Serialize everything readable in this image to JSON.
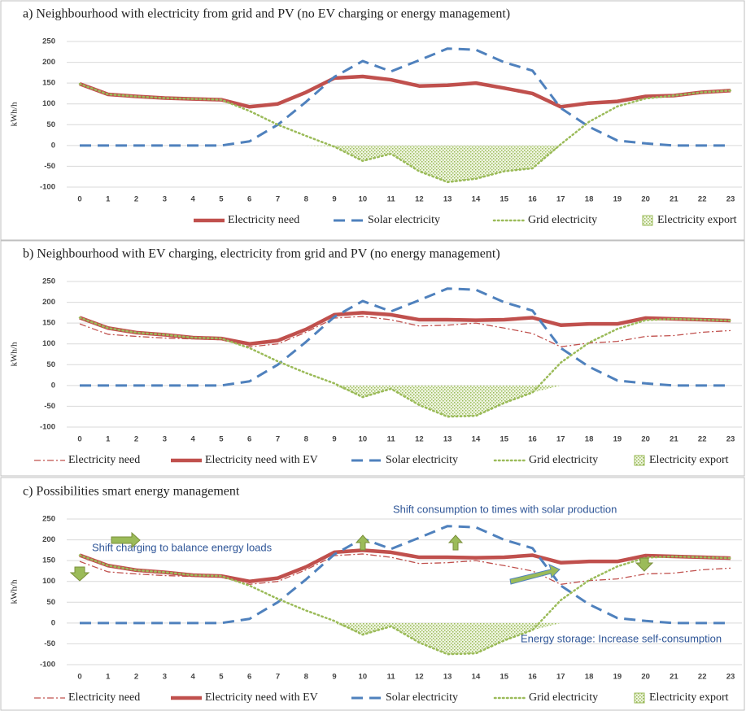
{
  "chart_data": [
    {
      "type": "line",
      "title": "a) Neighbourhood with electricity  from grid and PV (no EV charging or energy management)",
      "y_label": "kWh/h",
      "categories": [
        "0",
        "1",
        "2",
        "3",
        "4",
        "5",
        "6",
        "7",
        "8",
        "9",
        "10",
        "11",
        "12",
        "13",
        "14",
        "15",
        "16",
        "17",
        "18",
        "19",
        "20",
        "21",
        "22",
        "23"
      ],
      "ylim": [
        -100,
        250
      ],
      "yticks": [
        -100,
        -50,
        0,
        50,
        100,
        150,
        200,
        250
      ],
      "grid": true,
      "series": [
        {
          "name": "Electricity need",
          "color": "#c0504d",
          "style": "thick",
          "values": [
            148,
            123,
            118,
            114,
            112,
            110,
            93,
            100,
            128,
            162,
            166,
            158,
            143,
            145,
            150,
            138,
            125,
            93,
            102,
            106,
            118,
            120,
            128,
            132
          ]
        },
        {
          "name": "Solar electricity",
          "color": "#4f81bd",
          "style": "dash",
          "values": [
            0,
            0,
            0,
            0,
            0,
            0,
            10,
            50,
            105,
            165,
            203,
            178,
            205,
            233,
            230,
            200,
            180,
            90,
            45,
            12,
            5,
            0,
            0,
            0
          ]
        },
        {
          "name": "Grid electricity",
          "color": "#9bbb59",
          "style": "dot",
          "values": [
            148,
            123,
            118,
            114,
            112,
            110,
            83,
            50,
            23,
            -3,
            -37,
            -20,
            -62,
            -88,
            -80,
            -62,
            -55,
            3,
            57,
            94,
            113,
            120,
            128,
            132
          ]
        },
        {
          "name": "Electricity  export",
          "color": "#9bbb59",
          "style": "hatch",
          "values": [
            0,
            0,
            0,
            0,
            0,
            0,
            0,
            0,
            0,
            -3,
            -37,
            -20,
            -62,
            -88,
            -80,
            -62,
            -55,
            0,
            0,
            0,
            0,
            0,
            0,
            0
          ]
        }
      ]
    },
    {
      "type": "line",
      "title": "b) Neighbourhood with EV charging, electricity  from grid and PV (no energy management)",
      "y_label": "kWh/h",
      "categories": [
        "0",
        "1",
        "2",
        "3",
        "4",
        "5",
        "6",
        "7",
        "8",
        "9",
        "10",
        "11",
        "12",
        "13",
        "14",
        "15",
        "16",
        "17",
        "18",
        "19",
        "20",
        "21",
        "22",
        "23"
      ],
      "ylim": [
        -100,
        250
      ],
      "yticks": [
        -100,
        -50,
        0,
        50,
        100,
        150,
        200,
        250
      ],
      "grid": true,
      "series": [
        {
          "name": "Electricity need",
          "color": "#c0504d",
          "style": "dashdot",
          "values": [
            148,
            123,
            118,
            114,
            112,
            110,
            93,
            100,
            128,
            162,
            166,
            158,
            143,
            145,
            150,
            138,
            125,
            93,
            102,
            106,
            118,
            120,
            128,
            132
          ]
        },
        {
          "name": "Electricity need with EV",
          "color": "#c0504d",
          "style": "thick",
          "values": [
            163,
            138,
            127,
            122,
            115,
            113,
            100,
            108,
            135,
            170,
            175,
            170,
            158,
            158,
            157,
            158,
            163,
            145,
            148,
            148,
            162,
            160,
            158,
            156
          ]
        },
        {
          "name": "Solar electricity",
          "color": "#4f81bd",
          "style": "dash",
          "values": [
            0,
            0,
            0,
            0,
            0,
            0,
            10,
            50,
            105,
            165,
            203,
            178,
            205,
            233,
            230,
            200,
            180,
            90,
            45,
            12,
            5,
            0,
            0,
            0
          ]
        },
        {
          "name": "Grid electricity",
          "color": "#9bbb59",
          "style": "dot",
          "values": [
            163,
            138,
            127,
            122,
            115,
            113,
            90,
            58,
            30,
            5,
            -28,
            -8,
            -47,
            -75,
            -73,
            -42,
            -17,
            55,
            103,
            136,
            157,
            160,
            158,
            156
          ]
        },
        {
          "name": "Electricity  export",
          "color": "#9bbb59",
          "style": "hatch",
          "values": [
            0,
            0,
            0,
            0,
            0,
            0,
            0,
            0,
            0,
            0,
            -28,
            -8,
            -47,
            -75,
            -73,
            -42,
            -17,
            0,
            0,
            0,
            0,
            0,
            0,
            0
          ]
        }
      ]
    },
    {
      "type": "line",
      "title": "c) Possibilities smart energy management",
      "y_label": "kWh/h",
      "annotations": [
        "Shift charging to balance energy loads",
        "Shift consumption to times with solar production",
        "Energy storage: Increase self-consumption"
      ],
      "categories": [
        "0",
        "1",
        "2",
        "3",
        "4",
        "5",
        "6",
        "7",
        "8",
        "9",
        "10",
        "11",
        "12",
        "13",
        "14",
        "15",
        "16",
        "17",
        "18",
        "19",
        "20",
        "21",
        "22",
        "23"
      ],
      "ylim": [
        -100,
        250
      ],
      "yticks": [
        -100,
        -50,
        0,
        50,
        100,
        150,
        200,
        250
      ],
      "grid": true,
      "series": [
        {
          "name": "Electricity need",
          "color": "#c0504d",
          "style": "dashdot",
          "values": [
            148,
            123,
            118,
            114,
            112,
            110,
            93,
            100,
            128,
            162,
            166,
            158,
            143,
            145,
            150,
            138,
            125,
            93,
            102,
            106,
            118,
            120,
            128,
            132
          ]
        },
        {
          "name": "Electricity need with EV",
          "color": "#c0504d",
          "style": "thick",
          "values": [
            163,
            138,
            127,
            122,
            115,
            113,
            100,
            108,
            135,
            170,
            175,
            170,
            158,
            158,
            157,
            158,
            163,
            145,
            148,
            148,
            162,
            160,
            158,
            156
          ]
        },
        {
          "name": "Solar electricity",
          "color": "#4f81bd",
          "style": "dash",
          "values": [
            0,
            0,
            0,
            0,
            0,
            0,
            10,
            50,
            105,
            165,
            203,
            178,
            205,
            233,
            230,
            200,
            180,
            90,
            45,
            12,
            5,
            0,
            0,
            0
          ]
        },
        {
          "name": "Grid electricity",
          "color": "#9bbb59",
          "style": "dot",
          "values": [
            163,
            138,
            127,
            122,
            115,
            113,
            90,
            58,
            30,
            5,
            -28,
            -8,
            -47,
            -75,
            -73,
            -42,
            -17,
            55,
            103,
            136,
            157,
            160,
            158,
            156
          ]
        },
        {
          "name": "Electricity  export",
          "color": "#9bbb59",
          "style": "hatch",
          "values": [
            0,
            0,
            0,
            0,
            0,
            0,
            0,
            0,
            0,
            0,
            -28,
            -8,
            -47,
            -75,
            -73,
            -42,
            -17,
            0,
            0,
            0,
            0,
            0,
            0,
            0
          ]
        }
      ]
    }
  ]
}
